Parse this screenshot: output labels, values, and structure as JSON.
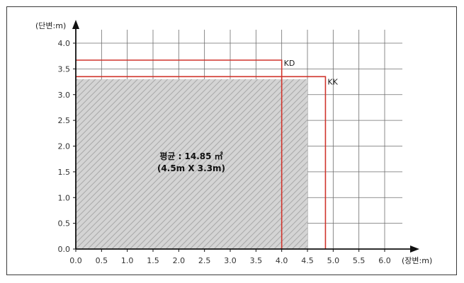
{
  "chart_data": {
    "type": "area",
    "title": "",
    "xlabel": "(장변:m)",
    "ylabel": "(단변:m)",
    "xlim": [
      0,
      6.0
    ],
    "ylim": [
      0,
      4.0
    ],
    "x_ticks": [
      "0.0",
      "0.5",
      "1.0",
      "1.5",
      "2.0",
      "2.5",
      "3.0",
      "3.5",
      "4.0",
      "4.5",
      "5.0",
      "5.5",
      "6.0"
    ],
    "y_ticks": [
      "0.0",
      "0.5",
      "1.0",
      "1.5",
      "2.0",
      "2.5",
      "3.0",
      "3.5",
      "4.0"
    ],
    "grid": true,
    "average_area": {
      "width": 4.5,
      "height": 3.3,
      "label_line1": "평균 : 14.85 ㎡",
      "label_line2": "(4.5m X 3.3m)",
      "fill_color": "#d4d4d4",
      "hatch_color": "#a8a8a8"
    },
    "series": [
      {
        "name": "KD",
        "width": 4.0,
        "height": 3.67,
        "color": "#d0342c"
      },
      {
        "name": "KK",
        "width": 4.85,
        "height": 3.35,
        "color": "#d0342c"
      }
    ]
  }
}
